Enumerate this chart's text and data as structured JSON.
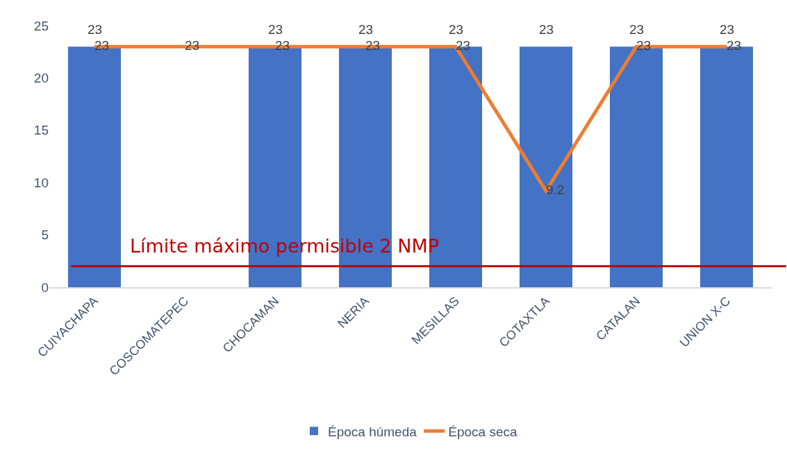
{
  "chart_data": {
    "type": "bar",
    "categories": [
      "CUIYACHAPA",
      "COSCOMATEPEC",
      "CHOCAMAN",
      "NERIA",
      "MESILLAS",
      "COTAXTLA",
      "CATALAN",
      "UNION X-C"
    ],
    "series": [
      {
        "name": "Época húmeda",
        "color": "#4472c4",
        "values": [
          23,
          null,
          23,
          23,
          23,
          23,
          23,
          23
        ]
      },
      {
        "name": "Época seca",
        "type": "line",
        "color": "#ed7d31",
        "values": [
          23,
          23,
          23,
          23,
          23,
          9.2,
          23,
          23
        ]
      }
    ],
    "ylim": [
      0,
      25
    ],
    "yticks": [
      0,
      5,
      10,
      15,
      20,
      25
    ],
    "legend": "bottom",
    "data_labels": true,
    "ref_lines": [
      {
        "axis": "y",
        "value": 2,
        "label": "Límite máximo permisible 2 NMP",
        "color": "#c00000"
      }
    ]
  }
}
